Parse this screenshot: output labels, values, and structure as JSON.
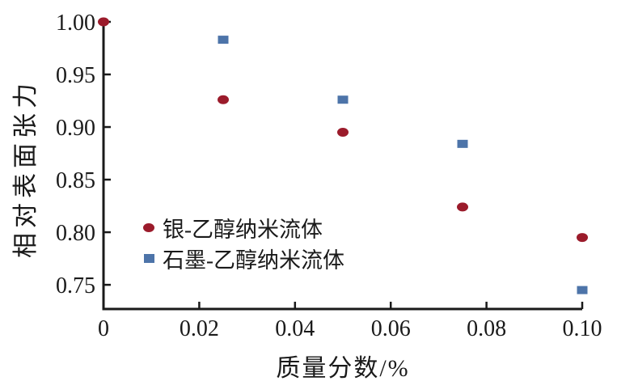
{
  "figure": {
    "background": "#ffffff",
    "axis_color": "#1a1a1a"
  },
  "chart_data": {
    "type": "scatter",
    "title": "",
    "xlabel": "质量分数/%",
    "ylabel": "相对表面张力",
    "xlim": [
      0,
      0.1
    ],
    "ylim": [
      0.727,
      1.0
    ],
    "xticks": [
      0,
      0.02,
      0.04,
      0.06,
      0.08,
      0.1
    ],
    "xtick_labels": [
      "0",
      "0.02",
      "0.04",
      "0.06",
      "0.08",
      "0.10"
    ],
    "yticks": [
      0.75,
      0.8,
      0.85,
      0.9,
      0.95,
      1.0
    ],
    "ytick_labels": [
      "0.75",
      "0.80",
      "0.85",
      "0.90",
      "0.95",
      "1.00"
    ],
    "grid": false,
    "legend_position": "inside-left-center",
    "series": [
      {
        "name": "银-乙醇纳米流体",
        "marker": "circle",
        "color": "#9b1b2b",
        "x": [
          0,
          0.025,
          0.05,
          0.075,
          0.1
        ],
        "y": [
          1.0,
          0.926,
          0.895,
          0.824,
          0.795
        ]
      },
      {
        "name": "石墨-乙醇纳米流体",
        "marker": "square",
        "color": "#4d74a9",
        "x": [
          0.025,
          0.05,
          0.075,
          0.1
        ],
        "y": [
          0.983,
          0.926,
          0.884,
          0.745
        ]
      }
    ]
  }
}
